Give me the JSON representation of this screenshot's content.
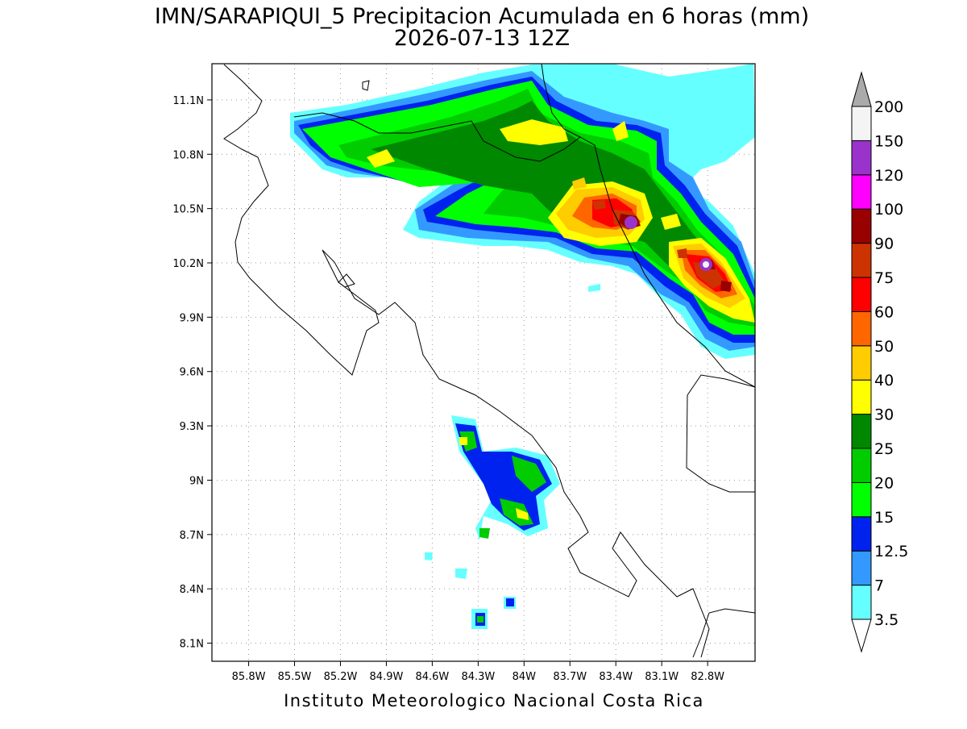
{
  "header": {
    "title": "IMN/SARAPIQUI_5 Precipitacion Acumulada en 6 horas (mm)",
    "subtitle": "2026-07-13 12Z"
  },
  "map": {
    "xlim": [
      -86.04,
      -82.49
    ],
    "ylim": [
      8.0,
      11.3
    ],
    "xticks": [
      {
        "value": -85.8,
        "label": "85.8W"
      },
      {
        "value": -85.5,
        "label": "85.5W"
      },
      {
        "value": -85.2,
        "label": "85.2W"
      },
      {
        "value": -84.9,
        "label": "84.9W"
      },
      {
        "value": -84.6,
        "label": "84.6W"
      },
      {
        "value": -84.3,
        "label": "84.3W"
      },
      {
        "value": -84.0,
        "label": "84W"
      },
      {
        "value": -83.7,
        "label": "83.7W"
      },
      {
        "value": -83.4,
        "label": "83.4W"
      },
      {
        "value": -83.1,
        "label": "83.1W"
      },
      {
        "value": -82.8,
        "label": "82.8W"
      }
    ],
    "yticks": [
      {
        "value": 8.1,
        "label": "8.1N"
      },
      {
        "value": 8.4,
        "label": "8.4N"
      },
      {
        "value": 8.7,
        "label": "8.7N"
      },
      {
        "value": 9.0,
        "label": "9N"
      },
      {
        "value": 9.3,
        "label": "9.3N"
      },
      {
        "value": 9.6,
        "label": "9.6N"
      },
      {
        "value": 9.9,
        "label": "9.9N"
      },
      {
        "value": 10.2,
        "label": "10.2N"
      },
      {
        "value": 10.5,
        "label": "10.5N"
      },
      {
        "value": 10.8,
        "label": "10.8N"
      },
      {
        "value": 11.1,
        "label": "11.1N"
      }
    ],
    "grid": true
  },
  "colorbar": {
    "levels": [
      3.5,
      7,
      12.5,
      15,
      20,
      25,
      30,
      40,
      50,
      60,
      75,
      90,
      100,
      120,
      150,
      200
    ],
    "colors": [
      "#ffffff",
      "#66ffff",
      "#3399ff",
      "#0022ee",
      "#00ff00",
      "#00cc00",
      "#008800",
      "#ffff00",
      "#ffcc00",
      "#ff6600",
      "#ff0000",
      "#cc3300",
      "#990000",
      "#ff00ff",
      "#9933cc",
      "#f4f4f4",
      "#aaaaaa"
    ]
  },
  "footer": "Instituto Meteorologico Nacional Costa Rica"
}
